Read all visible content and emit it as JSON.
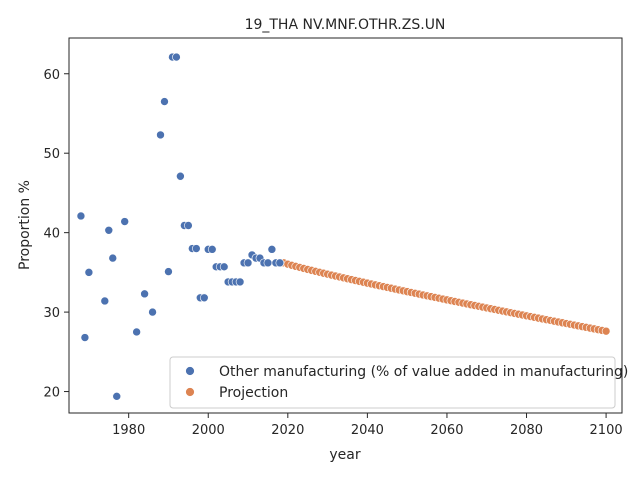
{
  "chart_data": {
    "type": "scatter",
    "title": "19_THA NV.MNF.OTHR.ZS.UN",
    "xlabel": "year",
    "ylabel": "Proportion %",
    "xlim": [
      1965,
      2104
    ],
    "ylim": [
      17.3,
      64.5
    ],
    "xticks": [
      1980,
      2000,
      2020,
      2040,
      2060,
      2080,
      2100
    ],
    "yticks": [
      20,
      30,
      40,
      50,
      60
    ],
    "grid": false,
    "legend_position": "lower-right",
    "series": [
      {
        "name": "Other manufacturing (% of value added in manufacturing)",
        "color": "#4c72b0",
        "x": [
          1968,
          1969,
          1970,
          1974,
          1975,
          1976,
          1977,
          1979,
          1982,
          1984,
          1986,
          1988,
          1989,
          1990,
          1991,
          1992,
          1993,
          1994,
          1995,
          1996,
          1997,
          1998,
          1999,
          2000,
          2001,
          2002,
          2003,
          2004,
          2005,
          2006,
          2007,
          2008,
          2009,
          2010,
          2011,
          2012,
          2013,
          2014,
          2015,
          2016,
          2017,
          2018
        ],
        "y": [
          42.1,
          26.8,
          35.0,
          31.4,
          40.3,
          36.8,
          19.4,
          41.4,
          27.5,
          32.3,
          30.0,
          52.3,
          56.5,
          35.1,
          62.1,
          62.1,
          47.1,
          40.9,
          40.9,
          38.0,
          38.0,
          31.8,
          31.8,
          37.9,
          37.9,
          35.7,
          35.7,
          35.7,
          33.8,
          33.8,
          33.8,
          33.8,
          36.2,
          36.2,
          37.2,
          36.8,
          36.8,
          36.2,
          36.2,
          37.9,
          36.2,
          36.2
        ]
      },
      {
        "name": "Projection",
        "color": "#dd8452",
        "x_start": 2019,
        "x_end": 2100,
        "y_start": 36.2,
        "y_end": 27.6,
        "curve": 0.9
      }
    ]
  }
}
